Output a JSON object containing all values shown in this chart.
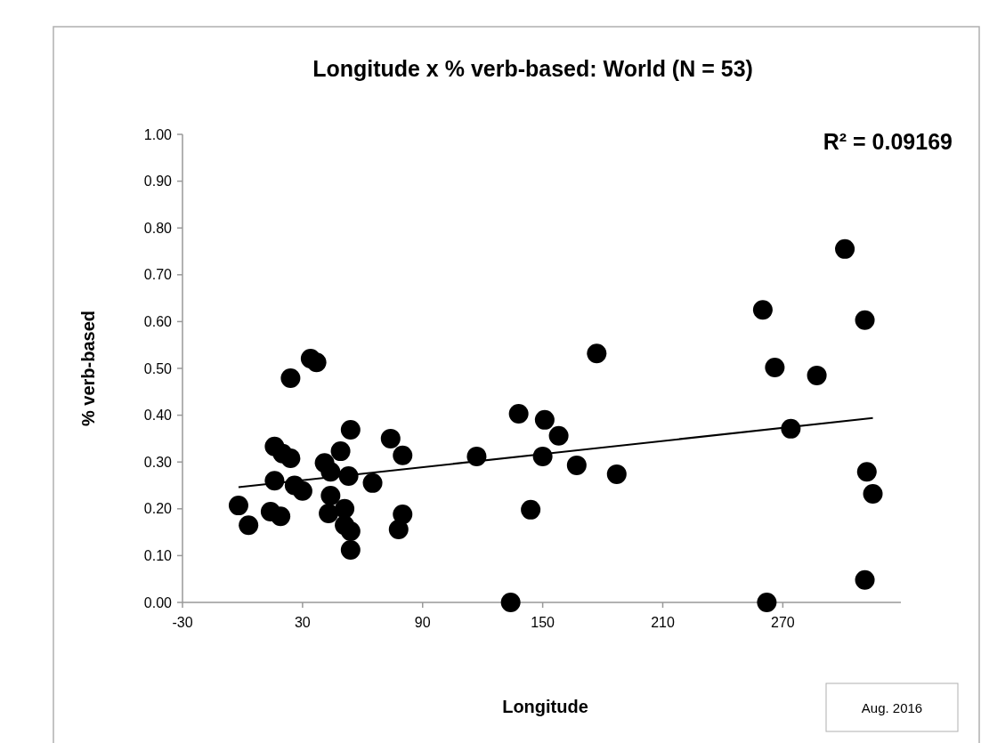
{
  "chart_data": {
    "type": "scatter",
    "title": "Longitude x % verb-based: World  (N = 53)",
    "xlabel": "Longitude",
    "ylabel": "% verb-based",
    "xlim": [
      -30,
      329
    ],
    "xticks": [
      -30,
      30,
      90,
      150,
      210,
      270
    ],
    "ylim": [
      0,
      1
    ],
    "yticks": [
      {
        "value": 0,
        "label": "0.00"
      },
      {
        "value": 0.1,
        "label": "0.10"
      },
      {
        "value": 0.2,
        "label": "0.20"
      },
      {
        "value": 0.3,
        "label": "0.30"
      },
      {
        "value": 0.4,
        "label": "0.40"
      },
      {
        "value": 0.5,
        "label": "0.50"
      },
      {
        "value": 0.6,
        "label": "0.60"
      },
      {
        "value": 0.7,
        "label": "0.70"
      },
      {
        "value": 0.8,
        "label": "0.80"
      },
      {
        "value": 0.9,
        "label": "0.90"
      },
      {
        "value": 1,
        "label": "1.00"
      }
    ],
    "grid": false,
    "marker": "circle",
    "series": [
      {
        "color": "#000000",
        "x": [
          -2,
          3,
          14,
          19,
          16,
          20,
          24,
          16,
          26,
          30,
          24,
          34,
          37,
          41,
          44,
          49,
          54,
          53,
          44,
          43,
          51,
          54,
          54,
          51,
          74,
          80,
          65,
          80,
          78,
          117,
          138,
          151,
          158,
          150,
          167,
          187,
          144,
          134,
          177,
          301,
          260,
          311,
          266,
          287,
          274,
          312,
          315,
          311,
          262
        ],
        "values": [
          0.207,
          0.165,
          0.194,
          0.184,
          0.333,
          0.318,
          0.308,
          0.26,
          0.25,
          0.238,
          0.479,
          0.521,
          0.513,
          0.298,
          0.279,
          0.323,
          0.369,
          0.27,
          0.228,
          0.19,
          0.2,
          0.152,
          0.112,
          0.165,
          0.35,
          0.314,
          0.255,
          0.188,
          0.156,
          0.312,
          0.403,
          0.39,
          0.356,
          0.312,
          0.293,
          0.274,
          0.198,
          0.0,
          0.532,
          0.755,
          0.625,
          0.603,
          0.502,
          0.485,
          0.371,
          0.279,
          0.232,
          0.048,
          0.0
        ]
      },
      {
        "type": "line",
        "marker": "none",
        "color": "#000000",
        "x": [
          -2,
          315
        ],
        "values": [
          0.246,
          0.394
        ]
      }
    ],
    "annotations": [
      "R² = 0.09169",
      "Aug. 2016"
    ]
  }
}
